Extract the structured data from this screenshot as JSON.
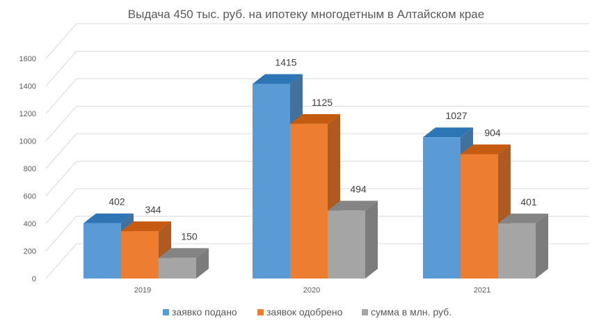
{
  "chart_data": {
    "type": "bar",
    "title": "Выдача 450 тыс. руб. на ипотеку многодетным в Алтайском крае",
    "categories": [
      "2019",
      "2020",
      "2021"
    ],
    "series": [
      {
        "name": "заявко подано",
        "values": [
          402,
          1415,
          1027
        ]
      },
      {
        "name": "заявок одобрено",
        "values": [
          344,
          1125,
          904
        ]
      },
      {
        "name": "сумма в млн. руб.",
        "values": [
          150,
          494,
          401
        ]
      }
    ],
    "yticks": [
      0,
      200,
      400,
      600,
      800,
      1000,
      1200,
      1400,
      1600
    ],
    "ylim": [
      0,
      1600
    ],
    "xlabel": "",
    "ylabel": "",
    "grid": true,
    "legend_position": "bottom",
    "three_d": true,
    "colors": [
      "#5b9bd5",
      "#ed7d31",
      "#a5a5a5"
    ],
    "side_colors": [
      "#41719c",
      "#ae5a21",
      "#7c7c7c"
    ],
    "top_colors": [
      "#2e75b6",
      "#c55a11",
      "#848484"
    ]
  }
}
